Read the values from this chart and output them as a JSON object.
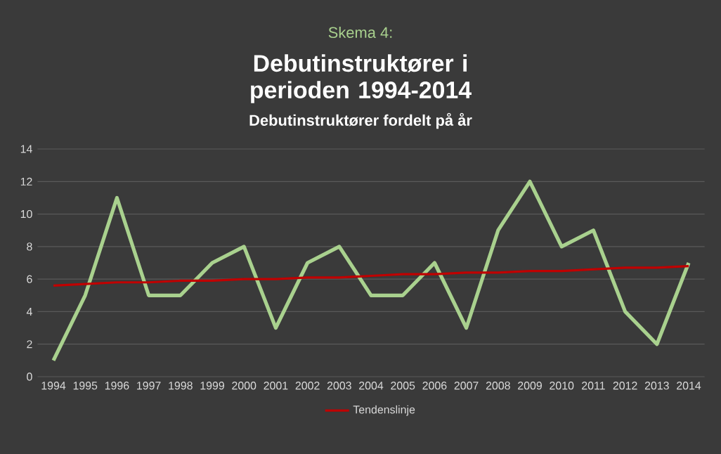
{
  "chart_data": {
    "type": "line",
    "title": "Debutinstruktører i perioden 1994-2014",
    "subtitle": "Debutinstruktører fordelt på år",
    "annotations": [
      "Skema 4:"
    ],
    "categories": [
      "1994",
      "1995",
      "1996",
      "1997",
      "1998",
      "1999",
      "2000",
      "2001",
      "2002",
      "2003",
      "2004",
      "2005",
      "2006",
      "2007",
      "2008",
      "2009",
      "2010",
      "2011",
      "2012",
      "2013",
      "2014"
    ],
    "series": [
      {
        "color": "#a9d18e",
        "values": [
          1,
          5,
          11,
          5,
          5,
          7,
          8,
          3,
          7,
          8,
          5,
          5,
          7,
          3,
          9,
          12,
          8,
          9,
          4,
          2,
          7
        ]
      },
      {
        "name": "Tendenslinje",
        "color": "#c00000",
        "values": [
          5.6,
          5.7,
          5.8,
          5.8,
          5.9,
          5.9,
          6.0,
          6.0,
          6.1,
          6.1,
          6.2,
          6.3,
          6.3,
          6.4,
          6.4,
          6.5,
          6.5,
          6.6,
          6.7,
          6.7,
          6.8
        ]
      }
    ],
    "ylim": [
      0,
      14
    ],
    "yticks": [
      0,
      2,
      4,
      6,
      8,
      10,
      12,
      14
    ],
    "grid": "y",
    "legend": "bottom",
    "marker": "none",
    "line_style": "solid"
  }
}
